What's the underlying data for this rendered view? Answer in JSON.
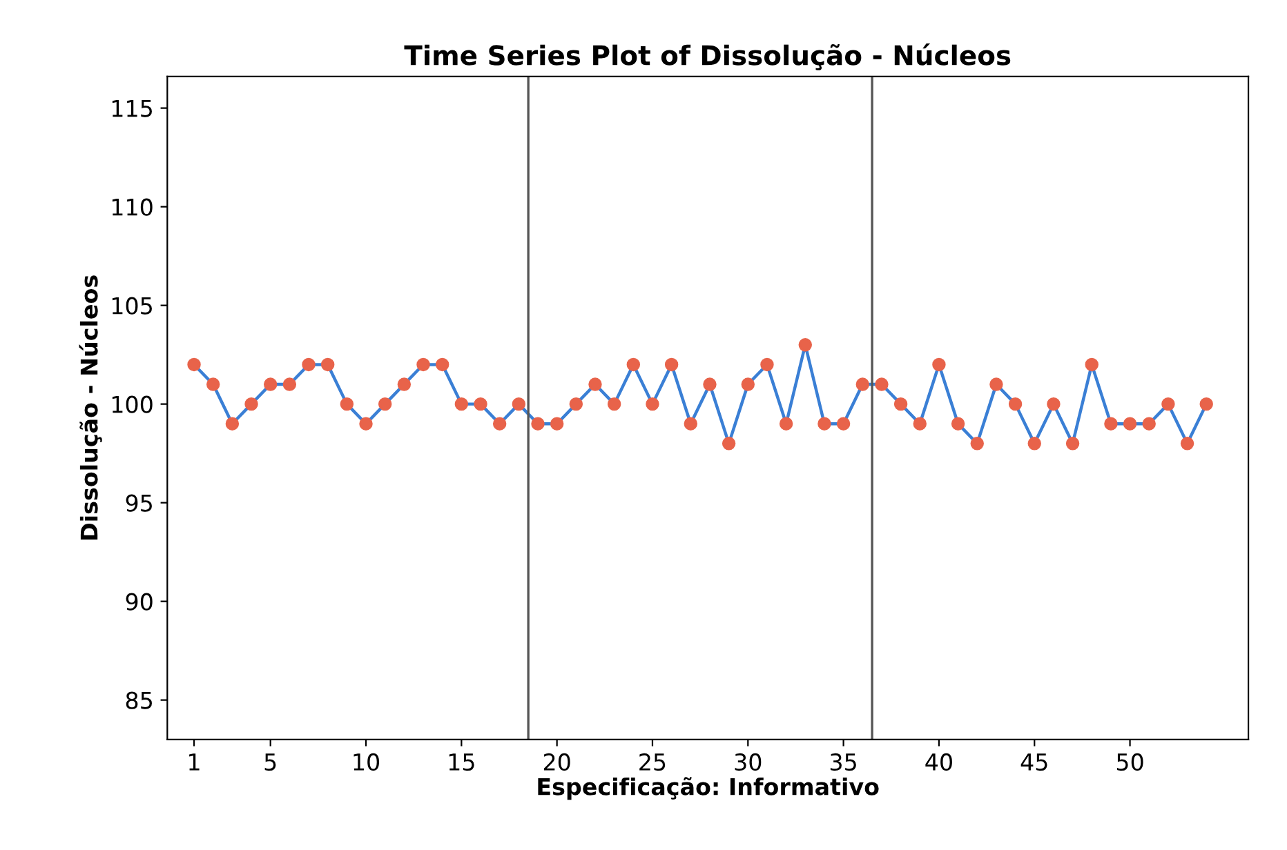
{
  "chart_data": {
    "type": "line",
    "title": "Time Series Plot of Dissolução - Núcleos",
    "xlabel": "Especificação: Informativo",
    "ylabel": "Dissolução - Núcleos",
    "x": [
      1,
      2,
      3,
      4,
      5,
      6,
      7,
      8,
      9,
      10,
      11,
      12,
      13,
      14,
      15,
      16,
      17,
      18,
      19,
      20,
      21,
      22,
      23,
      24,
      25,
      26,
      27,
      28,
      29,
      30,
      31,
      32,
      33,
      34,
      35,
      36,
      37,
      38,
      39,
      40,
      41,
      42,
      43,
      44,
      45,
      46,
      47,
      48,
      49,
      50,
      51,
      52,
      53,
      54
    ],
    "series": [
      {
        "color": "#3a7fd5",
        "colors": [
          "#e8634a",
          "#e8634a",
          "#e8634a",
          "#e8634a",
          "#e8634a",
          "#e8634a",
          "#e8634a",
          "#e8634a",
          "#e8634a",
          "#e8634a",
          "#e8634a",
          "#e8634a",
          "#e8634a",
          "#e8634a",
          "#e8634a",
          "#e8634a",
          "#e8634a",
          "#e8634a",
          "#e8634a",
          "#e8634a",
          "#e8634a",
          "#e8634a",
          "#e8634a",
          "#e8634a",
          "#e8634a",
          "#e8634a",
          "#e8634a",
          "#e8634a",
          "#e8634a",
          "#e8634a",
          "#e8634a",
          "#e8634a",
          "#e8634a",
          "#e8634a",
          "#e8634a",
          "#e8634a",
          "#e8634a",
          "#e8634a",
          "#e8634a",
          "#e8634a",
          "#e8634a",
          "#e8634a",
          "#e8634a",
          "#e8634a",
          "#e8634a",
          "#e8634a",
          "#e8634a",
          "#e8634a",
          "#e8634a",
          "#e8634a",
          "#e8634a",
          "#e8634a",
          "#e8634a",
          "#e8634a"
        ],
        "values": [
          102,
          101,
          99,
          100,
          101,
          101,
          102,
          102,
          100,
          99,
          100,
          101,
          102,
          102,
          100,
          100,
          99,
          100,
          99,
          99,
          100,
          101,
          100,
          102,
          100,
          102,
          99,
          101,
          98,
          101,
          102,
          99,
          103,
          99,
          99,
          101,
          101,
          100,
          99,
          102,
          99,
          98,
          101,
          100,
          98,
          100,
          98,
          102,
          99,
          99,
          99,
          100,
          98,
          100
        ]
      }
    ],
    "xlim": [
      -0.4,
      56.2
    ],
    "xticks": [
      1,
      5,
      10,
      15,
      20,
      25,
      30,
      35,
      40,
      45,
      50
    ],
    "ylim": [
      83,
      116.6
    ],
    "yticks": [
      85,
      90,
      95,
      100,
      105,
      110,
      115
    ],
    "ref_lines": [
      {
        "axis": "x",
        "value": 18.5,
        "color": "#555555"
      },
      {
        "axis": "x",
        "value": 36.5,
        "color": "#555555"
      }
    ],
    "marker": "circle",
    "line_style": "solid",
    "grid": false,
    "legend": false
  }
}
